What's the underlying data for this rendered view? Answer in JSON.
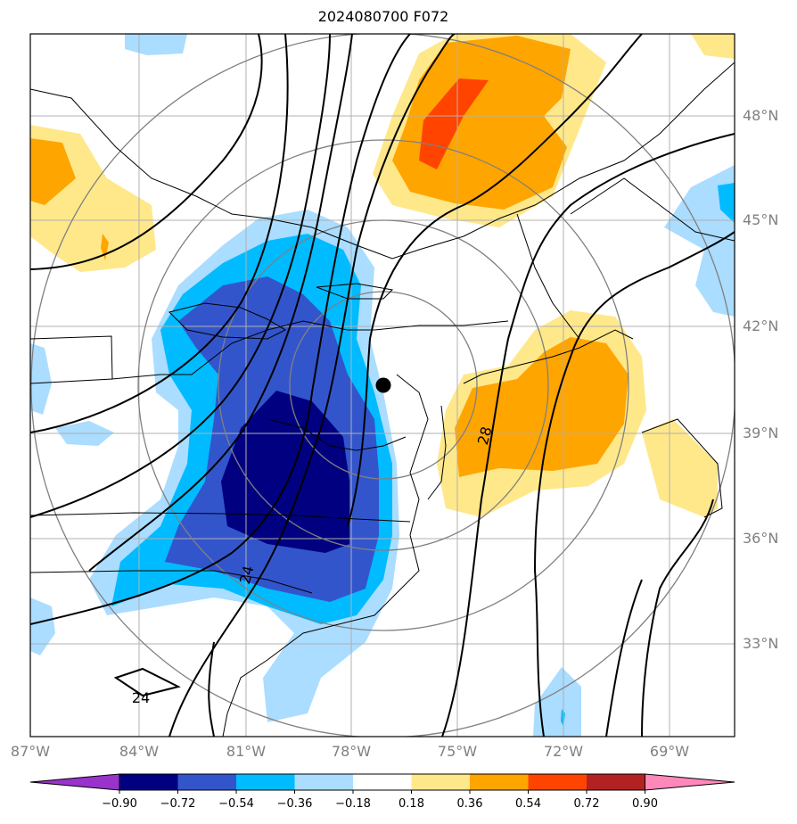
{
  "title": "2024080700 F072",
  "lat_labels": [
    "48°N",
    "45°N",
    "42°N",
    "39°N",
    "36°N",
    "33°N"
  ],
  "lon_labels": [
    "87°W",
    "84°W",
    "81°W",
    "78°W",
    "75°W",
    "72°W",
    "69°W"
  ],
  "contour_labels": [
    "28",
    "24",
    "24"
  ],
  "colorbar": {
    "levels": [
      "−0.90",
      "−0.72",
      "−0.54",
      "−0.36",
      "−0.18",
      "0.18",
      "0.36",
      "0.54",
      "0.72",
      "0.90"
    ],
    "colors": [
      "#9933cc",
      "#000080",
      "#3355cc",
      "#00bbff",
      "#aaddff",
      "#ffffff",
      "#ffe88a",
      "#ffa500",
      "#ff4400",
      "#b22222",
      "#ff88bb"
    ],
    "extend": "both"
  },
  "marker": {
    "label": "station point",
    "color": "#000000"
  }
}
